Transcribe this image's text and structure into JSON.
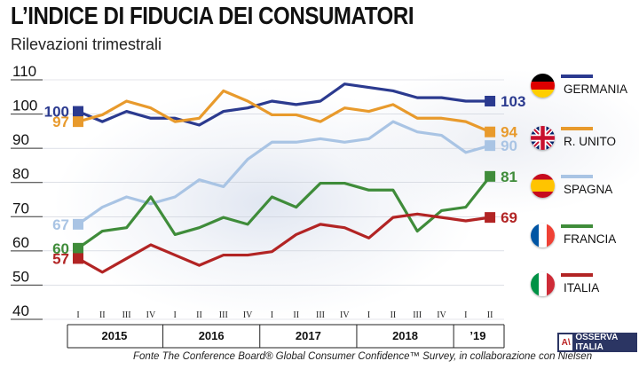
{
  "header": {
    "title": "L’INDICE DI FIDUCIA DEI CONSUMATORI",
    "subtitle": "Rilevazioni trimestrali"
  },
  "footer": {
    "source": "Fonte The Conference Board® Global Consumer Confidence™ Survey, in collaborazione con Nielsen",
    "logo_mark": "A\\",
    "logo_text": "OSSERVA ITALIA"
  },
  "colors": {
    "germania": "#2b3a8f",
    "regno_unito": "#e89a2c",
    "spagna": "#a9c4e4",
    "francia": "#3f8c3a",
    "italia": "#b22424"
  },
  "legend": [
    {
      "key": "germania",
      "label": "GERMANIA",
      "flag": "germany-flag-icon"
    },
    {
      "key": "regno_unito",
      "label": "R. UNITO",
      "flag": "uk-flag-icon"
    },
    {
      "key": "spagna",
      "label": "SPAGNA",
      "flag": "spain-flag-icon"
    },
    {
      "key": "francia",
      "label": "FRANCIA",
      "flag": "france-flag-icon"
    },
    {
      "key": "italia",
      "label": "ITALIA",
      "flag": "italy-flag-icon"
    }
  ],
  "chart_data": {
    "type": "line",
    "title": "L’INDICE DI FIDUCIA DEI CONSUMATORI",
    "subtitle": "Rilevazioni trimestrali",
    "x": [
      "I",
      "II",
      "III",
      "IV",
      "I",
      "II",
      "III",
      "IV",
      "I",
      "II",
      "III",
      "IV",
      "I",
      "II",
      "III",
      "IV",
      "I",
      "II"
    ],
    "year_groups": [
      {
        "label": "2015",
        "quarters": 4
      },
      {
        "label": "2016",
        "quarters": 4
      },
      {
        "label": "2017",
        "quarters": 4
      },
      {
        "label": "2018",
        "quarters": 4
      },
      {
        "label": "’19",
        "quarters": 2
      }
    ],
    "y_ticks": [
      40,
      50,
      60,
      70,
      80,
      90,
      100,
      110
    ],
    "ylim": [
      40,
      110
    ],
    "series": [
      {
        "key": "germania",
        "name": "GERMANIA",
        "values": [
          100,
          97,
          100,
          98,
          98,
          96,
          100,
          101,
          103,
          102,
          103,
          108,
          107,
          106,
          104,
          104,
          103,
          103
        ],
        "start_label": "100",
        "end_label": "103"
      },
      {
        "key": "regno_unito",
        "name": "R. UNITO",
        "values": [
          97,
          99,
          103,
          101,
          97,
          98,
          106,
          103,
          99,
          99,
          97,
          101,
          100,
          102,
          98,
          98,
          97,
          94
        ],
        "start_label": "97",
        "end_label": "94"
      },
      {
        "key": "spagna",
        "name": "SPAGNA",
        "values": [
          67,
          72,
          75,
          73,
          75,
          80,
          78,
          86,
          91,
          91,
          92,
          91,
          92,
          97,
          94,
          93,
          88,
          90
        ],
        "start_label": "67",
        "end_label": "90"
      },
      {
        "key": "francia",
        "name": "FRANCIA",
        "values": [
          60,
          65,
          66,
          75,
          64,
          66,
          69,
          67,
          75,
          72,
          79,
          79,
          77,
          77,
          65,
          71,
          72,
          81
        ],
        "start_label": "60",
        "end_label": "81"
      },
      {
        "key": "italia",
        "name": "ITALIA",
        "values": [
          57,
          53,
          57,
          61,
          58,
          55,
          58,
          58,
          59,
          64,
          67,
          66,
          63,
          69,
          70,
          69,
          68,
          69
        ],
        "start_label": "57",
        "end_label": "69"
      }
    ]
  }
}
